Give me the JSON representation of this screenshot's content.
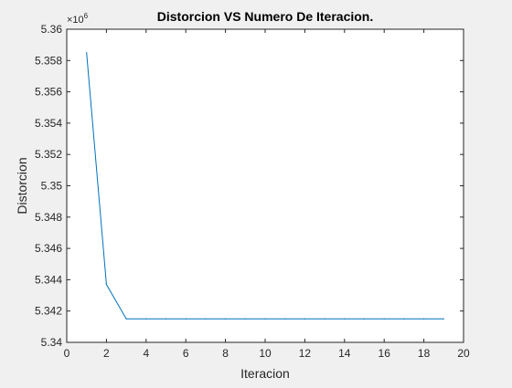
{
  "chart_data": {
    "type": "line",
    "title": "Distorcion VS Numero De Iteracion.",
    "xlabel": "Iteracion",
    "ylabel": "Distorcion",
    "y_exponent_label": "×10",
    "y_exponent_power": "6",
    "xlim": [
      0,
      20
    ],
    "ylim": [
      5.34,
      5.36
    ],
    "grid": false,
    "x_ticks": [
      0,
      2,
      4,
      6,
      8,
      10,
      12,
      14,
      16,
      18,
      20
    ],
    "x_tick_labels": [
      "0",
      "2",
      "4",
      "6",
      "8",
      "10",
      "12",
      "14",
      "16",
      "18",
      "20"
    ],
    "y_ticks": [
      5.34,
      5.342,
      5.344,
      5.346,
      5.348,
      5.35,
      5.352,
      5.354,
      5.356,
      5.358,
      5.36
    ],
    "y_tick_labels": [
      "5.34",
      "5.342",
      "5.344",
      "5.346",
      "5.348",
      "5.35",
      "5.352",
      "5.354",
      "5.356",
      "5.358",
      "5.36"
    ],
    "series": [
      {
        "color": "#0072bd",
        "x": [
          1,
          2,
          3,
          4,
          5,
          6,
          7,
          8,
          9,
          10,
          11,
          12,
          13,
          14,
          15,
          16,
          17,
          18,
          19
        ],
        "y": [
          5.3585,
          5.3437,
          5.3415,
          5.3415,
          5.3415,
          5.3415,
          5.3415,
          5.3415,
          5.3415,
          5.3415,
          5.3415,
          5.3415,
          5.3415,
          5.3415,
          5.3415,
          5.3415,
          5.3415,
          5.3415,
          5.3415
        ]
      }
    ]
  }
}
